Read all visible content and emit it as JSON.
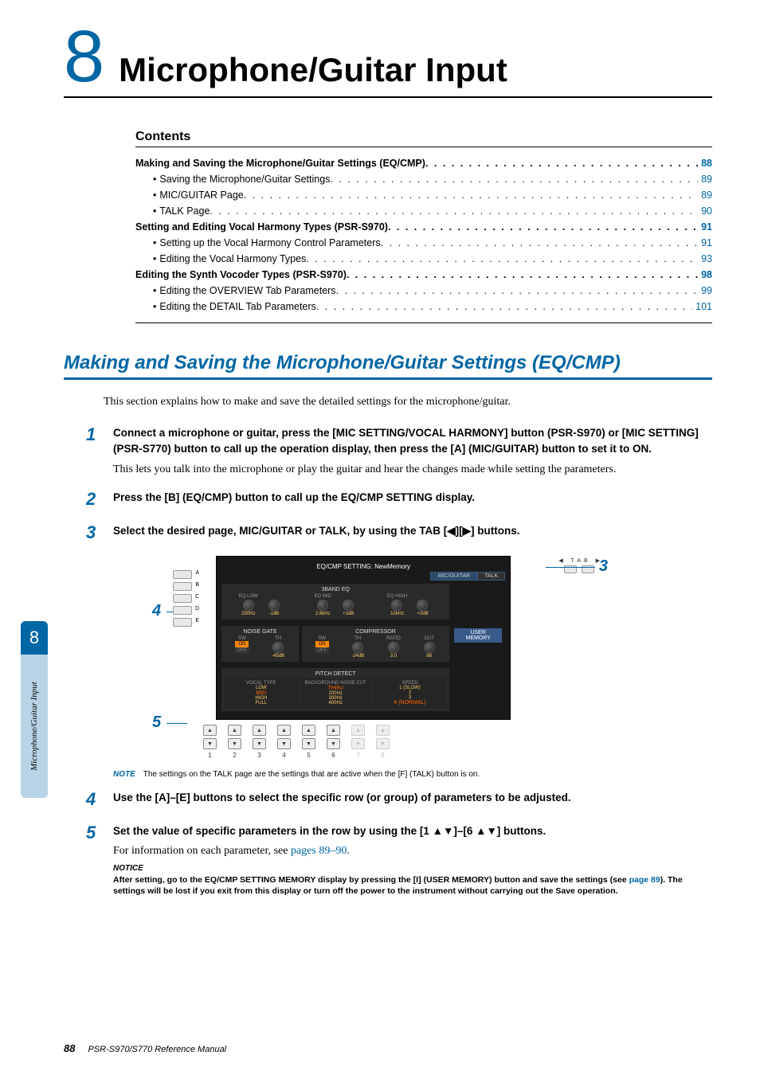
{
  "chapter": {
    "number": "8",
    "title": "Microphone/Guitar Input"
  },
  "contents": {
    "heading": "Contents",
    "items": [
      {
        "text": "Making and Saving the Microphone/Guitar Settings (EQ/CMP)",
        "page": "88",
        "bold": true
      },
      {
        "text": "Saving the Microphone/Guitar Settings",
        "page": "89",
        "sub": true
      },
      {
        "text": "MIC/GUITAR Page",
        "page": "89",
        "sub": true
      },
      {
        "text": "TALK Page",
        "page": "90",
        "sub": true
      },
      {
        "text": "Setting and Editing Vocal Harmony Types (PSR-S970)",
        "page": "91",
        "bold": true
      },
      {
        "text": "Setting up the Vocal Harmony Control Parameters",
        "page": "91",
        "sub": true
      },
      {
        "text": "Editing the Vocal Harmony Types",
        "page": "93",
        "sub": true
      },
      {
        "text": "Editing the Synth Vocoder Types (PSR-S970)",
        "page": "98",
        "bold": true
      },
      {
        "text": "Editing the OVERVIEW Tab Parameters",
        "page": "99",
        "sub": true
      },
      {
        "text": "Editing the DETAIL Tab Parameters",
        "page": "101",
        "sub": true
      }
    ]
  },
  "section": {
    "title": "Making and Saving the Microphone/Guitar Settings (EQ/CMP)"
  },
  "intro": "This section explains how to make and save the detailed settings for the microphone/guitar.",
  "steps": {
    "s1": {
      "num": "1",
      "title": "Connect a microphone or guitar, press the [MIC SETTING/VOCAL HARMONY] button (PSR-S970) or [MIC SETTING] (PSR-S770) button to call up the operation display, then press the [A] (MIC/GUITAR) button to set it to ON.",
      "text": "This lets you talk into the microphone or play the guitar and hear the changes made while setting the parameters."
    },
    "s2": {
      "num": "2",
      "title": "Press the [B] (EQ/CMP) button to call up the EQ/CMP SETTING display."
    },
    "s3": {
      "num": "3",
      "title": "Select the desired page, MIC/GUITAR or TALK, by using the TAB [◀][▶] buttons."
    },
    "s4": {
      "num": "4",
      "title": "Use the [A]–[E] buttons to select the specific row (or group) of parameters to be adjusted."
    },
    "s5": {
      "num": "5",
      "title": "Set the value of specific parameters in the row by using the [1 ▲▼]–[6 ▲▼] buttons.",
      "text_before": "For information on each parameter, see ",
      "link": "pages 89–90",
      "text_after": "."
    }
  },
  "figure": {
    "callouts": {
      "c3": "3",
      "c4": "4",
      "c5": "5"
    },
    "tab_label": "TAB",
    "screen": {
      "title": "EQ/CMP SETTING: NewMemory",
      "tab1": "MIC/GUITAR",
      "tab2": "TALK",
      "eq": {
        "title": "3BAND EQ",
        "groups": [
          {
            "name": "EQ LOW",
            "v1": "250Hz",
            "v2": "-1dB"
          },
          {
            "name": "EQ MID",
            "v1": "2.8kHz",
            "v2": "+1dB"
          },
          {
            "name": "EQ HIGH",
            "v1": "10kHz",
            "v2": "+2dB"
          }
        ]
      },
      "ngate": {
        "title": "NOISE GATE",
        "sw": "SW",
        "th": "TH",
        "on": "ON",
        "off": "OFF",
        "v_th": "-45dB"
      },
      "comp": {
        "title": "COMPRESSOR",
        "sw": "SW",
        "th": "TH",
        "ratio": "RATIO",
        "out": "OUT",
        "on": "ON",
        "off": "OFF",
        "v_th": "-24dB",
        "v_ratio": "3.0",
        "v_out": "86"
      },
      "pitch": {
        "title": "PITCH DETECT",
        "col1_t": "VOCAL TYPE",
        "col1_a": "LOW",
        "col1_b": "MID",
        "col1_c": "HIGH",
        "col1_d": "FULL",
        "col2_t": "BACKGROUND NOISE CUT",
        "col2_a": "THRU",
        "col2_b": "200Hz",
        "col2_c": "300Hz",
        "col2_d": "400Hz",
        "col3_t": "SPEED",
        "col3_a": "1 (SLOW)",
        "col3_b": "2",
        "col3_c": "3",
        "col3_d": "4 (NORMAL)"
      },
      "user_memory": "USER MEMORY",
      "letters": [
        "A",
        "B",
        "C",
        "D",
        "E"
      ],
      "bottom_nums": [
        "1",
        "2",
        "3",
        "4",
        "5",
        "6",
        "7",
        "8"
      ]
    }
  },
  "note": {
    "label": "NOTE",
    "text": "The settings on the TALK page are the settings that are active when the [F] (TALK) button is on."
  },
  "notice": {
    "label": "NOTICE",
    "text_before": "After setting, go to the EQ/CMP SETTING MEMORY display by pressing the [I] (USER MEMORY) button and save the settings (see ",
    "link": "page 89",
    "text_after": "). The settings will be lost if you exit from this display or turn off the power to the instrument without carrying out the Save operation."
  },
  "sidebar": {
    "num": "8",
    "text": "Microphone/Guitar Input"
  },
  "footer": {
    "page": "88",
    "manual": "PSR-S970/S770 Reference Manual"
  }
}
